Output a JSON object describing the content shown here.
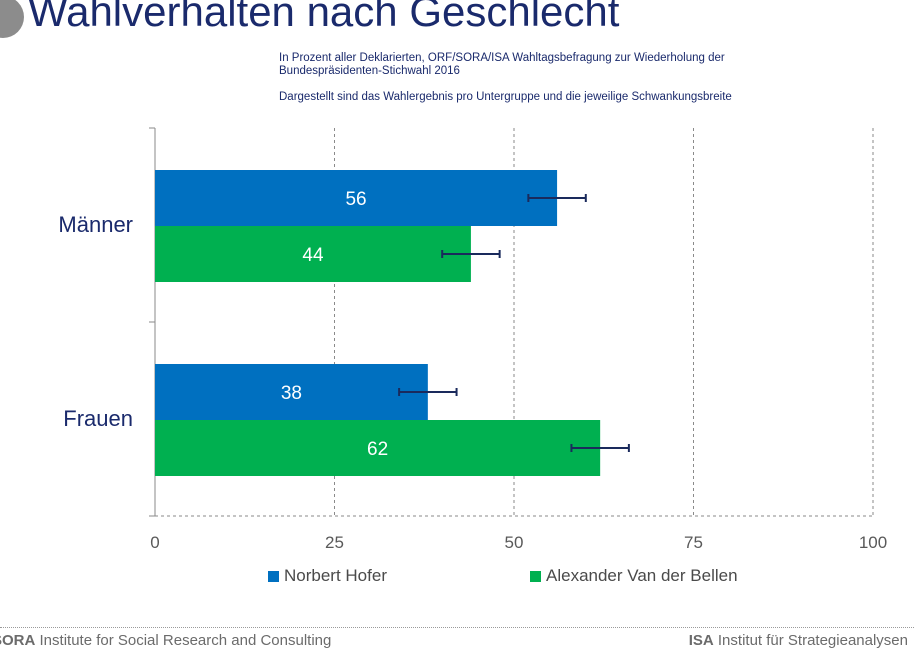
{
  "header": {
    "title": "Wahlverhalten nach Geschlecht",
    "subtitle_line1": "In Prozent aller Deklarierten, ORF/SORA/ISA Wahltagsbefragung zur Wiederholung der",
    "subtitle_line2": "Bundespräsidenten-Stichwahl 2016",
    "note": "Dargestellt sind das Wahlergebnis pro Untergruppe und die jeweilige Schwankungsbreite"
  },
  "chart_data": {
    "type": "bar",
    "orientation": "horizontal",
    "categories": [
      "Männer",
      "Frauen"
    ],
    "series": [
      {
        "name": "Norbert Hofer",
        "color": "#0070c0",
        "values": [
          56,
          38
        ],
        "error_low": [
          52,
          34
        ],
        "error_high": [
          60,
          42
        ]
      },
      {
        "name": "Alexander Van der Bellen",
        "color": "#00b050",
        "values": [
          44,
          62
        ],
        "error_low": [
          40,
          58
        ],
        "error_high": [
          48,
          66
        ]
      }
    ],
    "xlim": [
      0,
      100
    ],
    "xticks": [
      0,
      25,
      50,
      75,
      100
    ],
    "grid": "vertical dashed",
    "legend": "bottom"
  },
  "footer": {
    "left_bold": "SORA",
    "left_text": " Institute for Social Research and Consulting",
    "right_bold": "ISA",
    "right_text": " Institut für Strategieanalysen"
  }
}
